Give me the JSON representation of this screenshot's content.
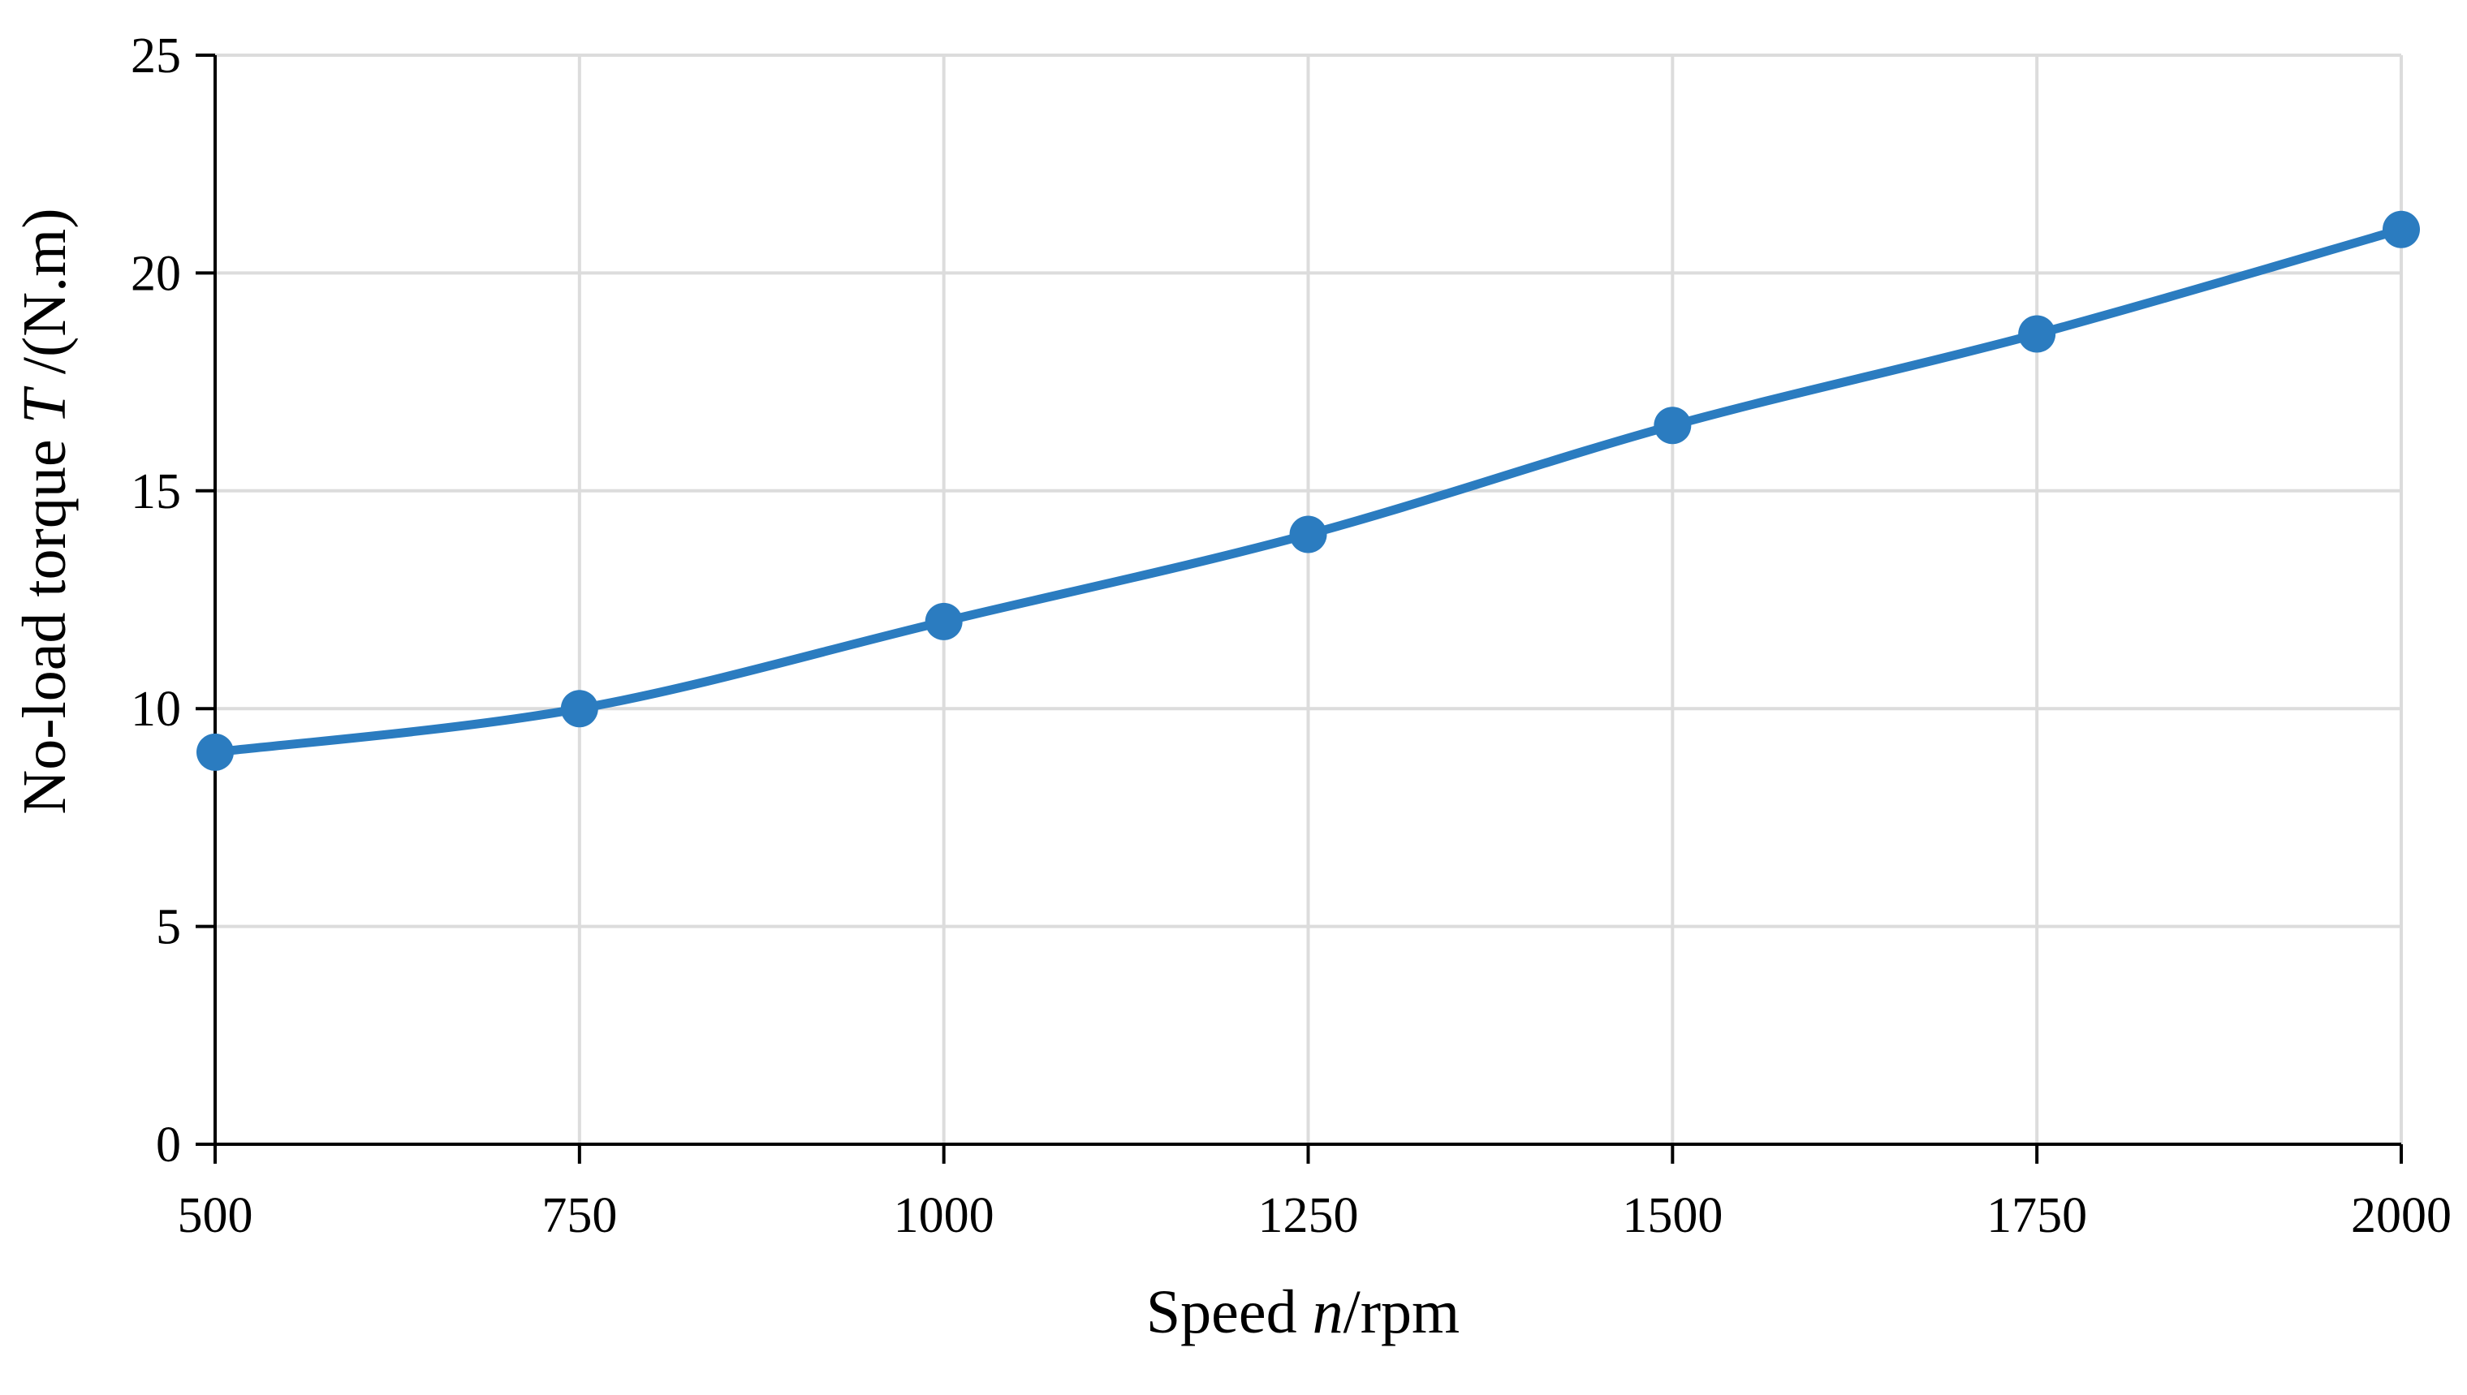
{
  "chart_data": {
    "type": "line",
    "title": "",
    "xlabel": {
      "prefix": "Speed ",
      "variable": "n",
      "suffix": "/rpm"
    },
    "ylabel": {
      "prefix": "No-load torque ",
      "variable": "T",
      "suffix": " /(N.m)"
    },
    "xlim": [
      500,
      2000
    ],
    "ylim": [
      0,
      25
    ],
    "xticks": [
      "500",
      "750",
      "1000",
      "1250",
      "1500",
      "1750",
      "2000"
    ],
    "yticks": [
      "0",
      "5",
      "10",
      "15",
      "20",
      "25"
    ],
    "grid": true,
    "legend": "none",
    "series": [
      {
        "color": "#2b7cc0",
        "smooth": true,
        "markers": true,
        "x": [
          500,
          750,
          1000,
          1250,
          1500,
          1750,
          2000
        ],
        "y": [
          9,
          10,
          12,
          14,
          16.5,
          18.6,
          21
        ]
      }
    ]
  }
}
